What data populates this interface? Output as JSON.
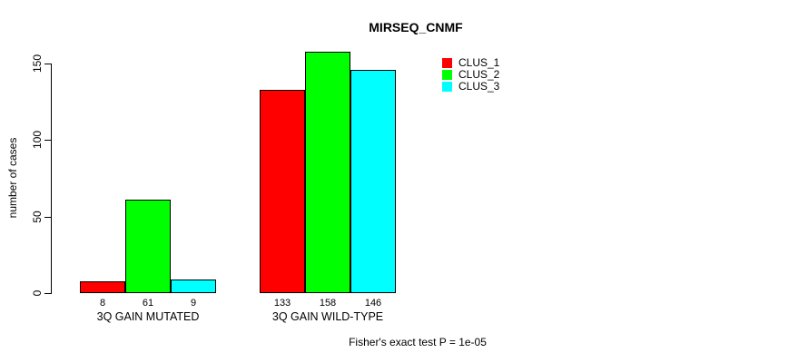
{
  "chart_data": {
    "type": "bar",
    "title": "MIRSEQ_CNMF",
    "ylabel": "number of cases",
    "xlabel": "",
    "categories": [
      "3Q GAIN MUTATED",
      "3Q GAIN WILD-TYPE"
    ],
    "series": [
      {
        "name": "CLUS_1",
        "color": "#ff0000",
        "values": [
          8,
          133
        ]
      },
      {
        "name": "CLUS_2",
        "color": "#00ff00",
        "values": [
          61,
          158
        ]
      },
      {
        "name": "CLUS_3",
        "color": "#00ffff",
        "values": [
          9,
          146
        ]
      }
    ],
    "bar_value_labels": [
      [
        8,
        61,
        9
      ],
      [
        133,
        158,
        146
      ]
    ],
    "ylim": [
      0,
      150
    ],
    "yticks": [
      0,
      50,
      100,
      150
    ],
    "grid": false,
    "legend_position": "top-right",
    "bar_border_color": "#000000",
    "annotation": "Fisher's exact test P = 1e-05"
  }
}
